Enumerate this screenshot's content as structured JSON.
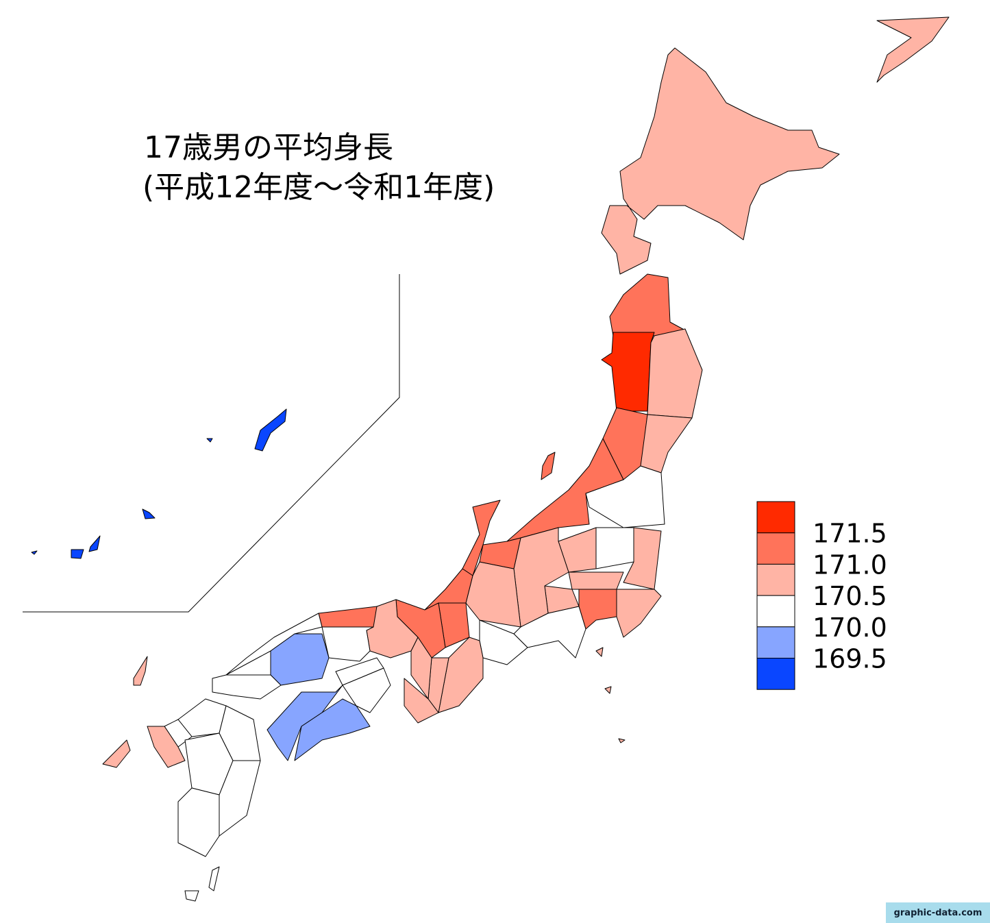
{
  "title": [
    "17歳男の平均身長",
    "(平成12年度～令和1年度)"
  ],
  "legend": {
    "colors": [
      "#ff2a00",
      "#ff735a",
      "#ffb4a5",
      "#ffffff",
      "#87a5ff",
      "#0a46ff"
    ],
    "labels": [
      171.5,
      {
        "value": 171,
        "label": "171.0"
      },
      170.5,
      {
        "value": 170,
        "label": "170.0"
      },
      169.5
    ]
  },
  "watermark": "graphic-data.com"
}
